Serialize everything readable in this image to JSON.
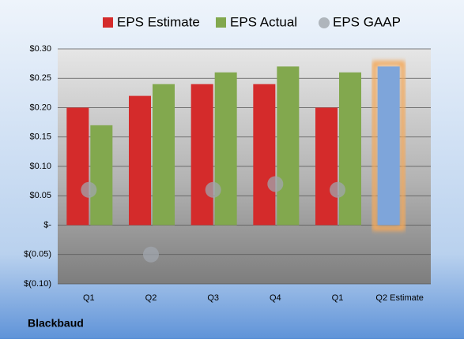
{
  "chart_data": {
    "type": "bar",
    "company": "Blackbaud",
    "categories": [
      "Q1",
      "Q2",
      "Q3",
      "Q4",
      "Q1",
      "Q2 Estimate"
    ],
    "series": [
      {
        "name": "EPS Estimate",
        "color": "#d42b2b",
        "values": [
          0.2,
          0.22,
          0.24,
          0.24,
          0.2,
          0.27
        ]
      },
      {
        "name": "EPS Actual",
        "color": "#82a84e",
        "values": [
          0.17,
          0.24,
          0.26,
          0.27,
          0.26,
          null
        ]
      },
      {
        "name": "EPS GAAP",
        "color": "#a0a6ad",
        "marker": "circle",
        "values": [
          0.06,
          -0.05,
          0.06,
          0.07,
          0.06,
          null
        ]
      }
    ],
    "highlight": {
      "index": 5,
      "color": "#7ea5da",
      "glow": "#f4a95a"
    },
    "ylim": [
      -0.1,
      0.3
    ],
    "yticks": [
      {
        "value": -0.1,
        "label": "$(0.10)"
      },
      {
        "value": -0.05,
        "label": "$(0.05)"
      },
      {
        "value": 0,
        "label": "$-"
      },
      {
        "value": 0.05,
        "label": "$0.05"
      },
      {
        "value": 0.1,
        "label": "$0.10"
      },
      {
        "value": 0.15,
        "label": "$0.15"
      },
      {
        "value": 0.2,
        "label": "$0.20"
      },
      {
        "value": 0.25,
        "label": "$0.25"
      },
      {
        "value": 0.3,
        "label": "$0.30"
      }
    ],
    "grid": true,
    "legend": "top"
  }
}
